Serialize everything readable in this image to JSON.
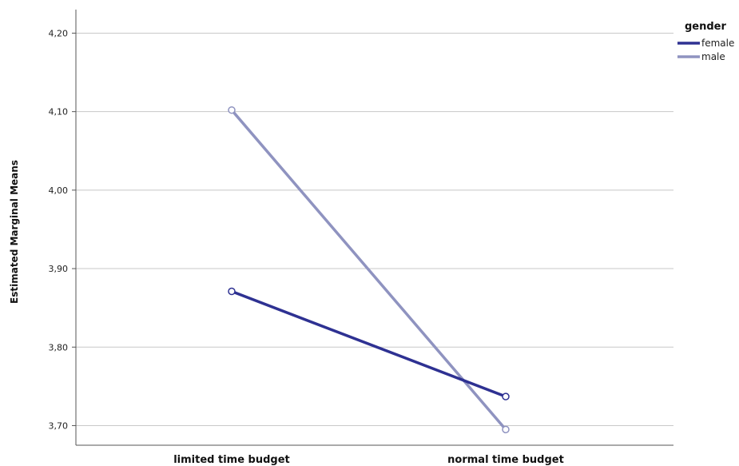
{
  "chart_data": {
    "type": "line",
    "ylabel": "Estimated Marginal Means",
    "categories": [
      "limited time budget",
      "normal time budget"
    ],
    "ylim": [
      3.675,
      4.23
    ],
    "yticks": [
      3.7,
      3.8,
      3.9,
      4.0,
      4.1,
      4.2
    ],
    "ytick_labels": [
      "3,70",
      "3,80",
      "3,90",
      "4,00",
      "4,10",
      "4,20"
    ],
    "grid": true,
    "legend": {
      "title": "gender",
      "placement": "top-right"
    },
    "series": [
      {
        "name": "female",
        "values": [
          3.871,
          3.737
        ],
        "color": "#2e3192"
      },
      {
        "name": "male",
        "values": [
          4.102,
          3.695
        ],
        "color": "#8f93c0"
      }
    ]
  }
}
